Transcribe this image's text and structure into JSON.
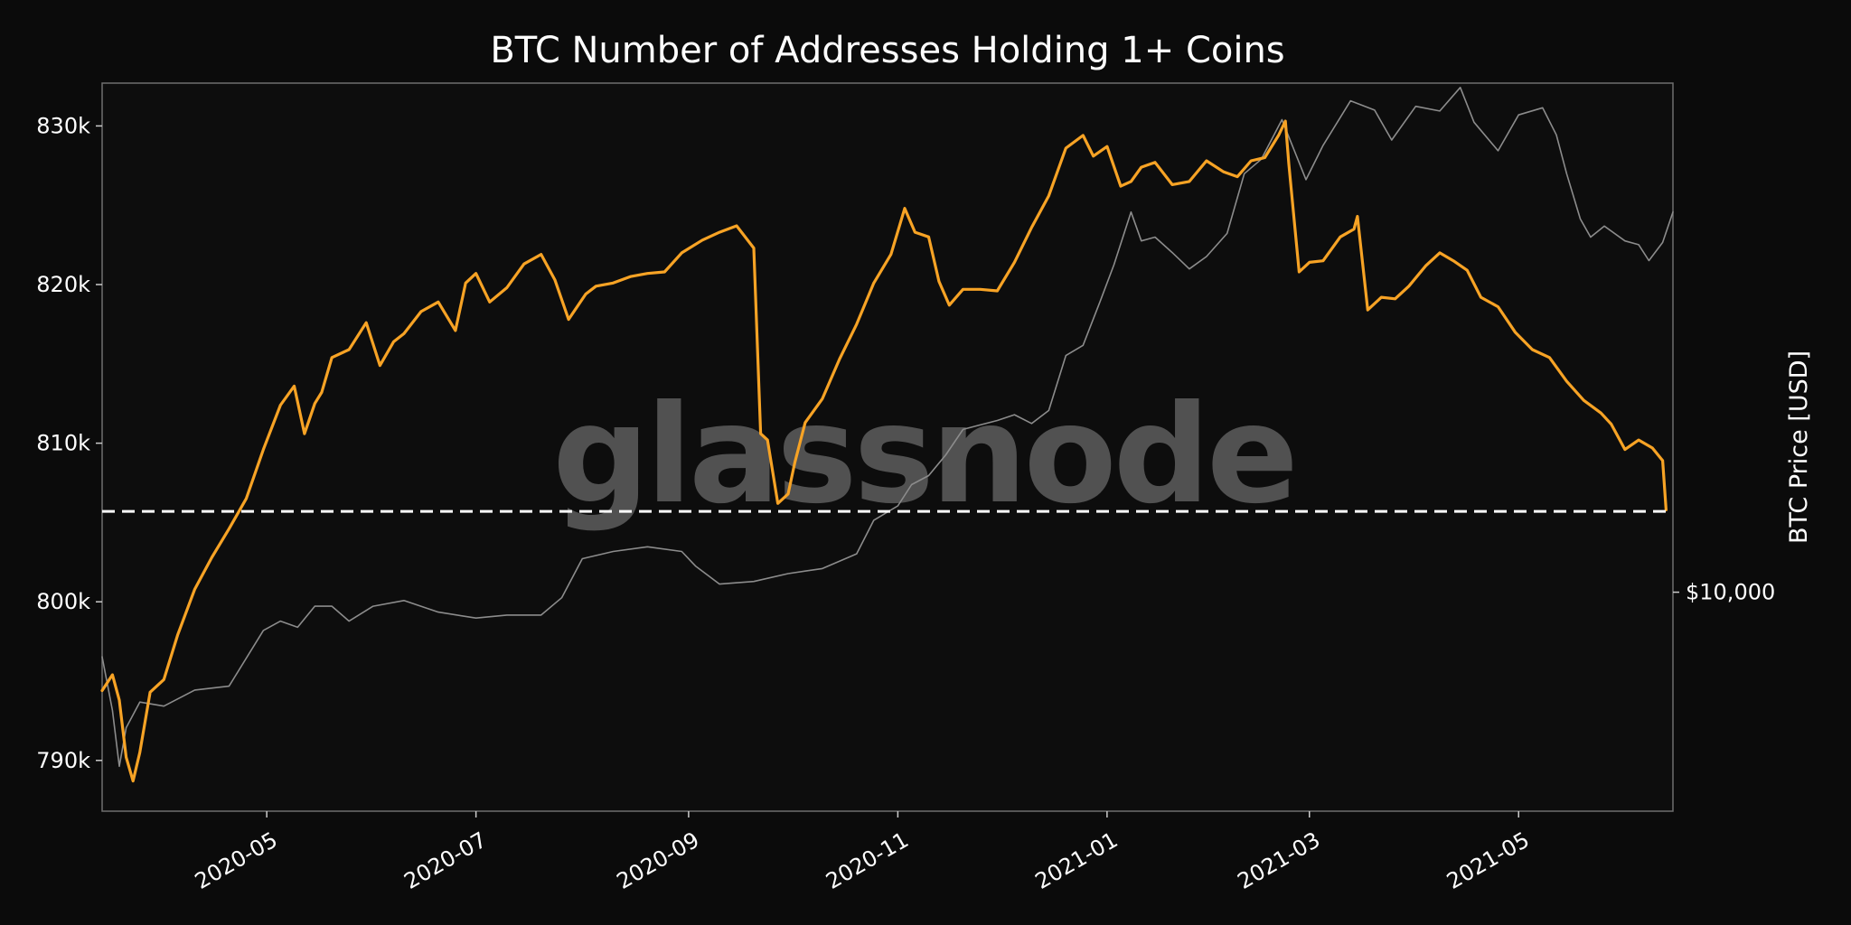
{
  "chart_data": {
    "type": "line",
    "title": "BTC Number of Addresses Holding 1+ Coins",
    "xlabel": "",
    "ylabel": "",
    "y2label": "BTC Price [USD]",
    "watermark": "glassnode",
    "xlim": [
      "2020-03-14",
      "2021-06-15"
    ],
    "ylim": [
      786800,
      832700
    ],
    "y2_log": true,
    "y2lim": [
      4500,
      64000
    ],
    "x_ticks": [
      {
        "date": "2020-05-01",
        "label": "2020-05"
      },
      {
        "date": "2020-07-01",
        "label": "2020-07"
      },
      {
        "date": "2020-09-01",
        "label": "2020-09"
      },
      {
        "date": "2020-11-01",
        "label": "2020-11"
      },
      {
        "date": "2021-01-01",
        "label": "2021-01"
      },
      {
        "date": "2021-03-01",
        "label": "2021-03"
      },
      {
        "date": "2021-05-01",
        "label": "2021-05"
      }
    ],
    "y_ticks": [
      {
        "value": 790000,
        "label": "790k"
      },
      {
        "value": 800000,
        "label": "800k"
      },
      {
        "value": 810000,
        "label": "810k"
      },
      {
        "value": 820000,
        "label": "820k"
      },
      {
        "value": 830000,
        "label": "830k"
      }
    ],
    "y2_ticks": [
      {
        "value": 10000,
        "label": "$10,000"
      }
    ],
    "hline": {
      "value": 805700,
      "style": "dashed",
      "color": "#ffffff"
    },
    "grid": false,
    "legend": "none",
    "series": [
      {
        "color": "#f7a325",
        "axis": "left",
        "x": [
          "2020-03-14",
          "2020-03-17",
          "2020-03-19",
          "2020-03-21",
          "2020-03-23",
          "2020-03-25",
          "2020-03-28",
          "2020-04-01",
          "2020-04-05",
          "2020-04-10",
          "2020-04-15",
          "2020-04-20",
          "2020-04-25",
          "2020-04-30",
          "2020-05-05",
          "2020-05-09",
          "2020-05-12",
          "2020-05-15",
          "2020-05-17",
          "2020-05-20",
          "2020-05-25",
          "2020-05-30",
          "2020-06-03",
          "2020-06-07",
          "2020-06-10",
          "2020-06-15",
          "2020-06-20",
          "2020-06-25",
          "2020-06-28",
          "2020-07-01",
          "2020-07-05",
          "2020-07-10",
          "2020-07-15",
          "2020-07-20",
          "2020-07-24",
          "2020-07-28",
          "2020-08-02",
          "2020-08-05",
          "2020-08-10",
          "2020-08-15",
          "2020-08-20",
          "2020-08-25",
          "2020-08-30",
          "2020-09-05",
          "2020-09-10",
          "2020-09-15",
          "2020-09-20",
          "2020-09-22",
          "2020-09-24",
          "2020-09-27",
          "2020-09-30",
          "2020-10-02",
          "2020-10-05",
          "2020-10-10",
          "2020-10-15",
          "2020-10-20",
          "2020-10-25",
          "2020-10-30",
          "2020-11-03",
          "2020-11-06",
          "2020-11-10",
          "2020-11-13",
          "2020-11-16",
          "2020-11-20",
          "2020-11-25",
          "2020-11-30",
          "2020-12-05",
          "2020-12-10",
          "2020-12-15",
          "2020-12-20",
          "2020-12-25",
          "2020-12-28",
          "2021-01-01",
          "2021-01-05",
          "2021-01-08",
          "2021-01-11",
          "2021-01-15",
          "2021-01-20",
          "2021-01-25",
          "2021-01-30",
          "2021-02-04",
          "2021-02-08",
          "2021-02-12",
          "2021-02-16",
          "2021-02-20",
          "2021-02-22",
          "2021-02-23",
          "2021-02-26",
          "2021-03-01",
          "2021-03-05",
          "2021-03-10",
          "2021-03-14",
          "2021-03-15",
          "2021-03-18",
          "2021-03-22",
          "2021-03-26",
          "2021-03-30",
          "2021-04-04",
          "2021-04-08",
          "2021-04-12",
          "2021-04-16",
          "2021-04-20",
          "2021-04-25",
          "2021-04-30",
          "2021-05-05",
          "2021-05-10",
          "2021-05-15",
          "2021-05-20",
          "2021-05-25",
          "2021-05-28",
          "2021-06-01",
          "2021-06-05",
          "2021-06-09",
          "2021-06-12",
          "2021-06-13"
        ],
        "values": [
          794400,
          795400,
          793800,
          790200,
          788700,
          790500,
          794300,
          795100,
          797900,
          800800,
          802800,
          804600,
          806500,
          809600,
          812400,
          813600,
          810600,
          812500,
          813200,
          815400,
          815900,
          817600,
          814900,
          816400,
          816900,
          818300,
          818900,
          817100,
          820100,
          820700,
          818900,
          819800,
          821300,
          821900,
          820300,
          817800,
          819400,
          819900,
          820100,
          820500,
          820700,
          820800,
          822000,
          822800,
          823300,
          823700,
          822300,
          810600,
          810200,
          806200,
          806800,
          808800,
          811300,
          812800,
          815300,
          817500,
          820100,
          821900,
          824800,
          823300,
          823000,
          820200,
          818700,
          819700,
          819700,
          819600,
          821400,
          823600,
          825600,
          828600,
          829400,
          828100,
          828700,
          826200,
          826500,
          827400,
          827700,
          826300,
          826500,
          827800,
          827100,
          826800,
          827800,
          828000,
          829400,
          830300,
          827600,
          820800,
          821400,
          821500,
          823000,
          823500,
          824300,
          818400,
          819200,
          819100,
          819900,
          821200,
          822000,
          821500,
          820900,
          819200,
          818600,
          817000,
          815900,
          815400,
          813900,
          812700,
          811900,
          811200,
          809600,
          810200,
          809700,
          808900,
          805800
        ]
      },
      {
        "color": "#8c8c8c",
        "axis": "right",
        "x": [
          "2020-03-14",
          "2020-03-17",
          "2020-03-19",
          "2020-03-21",
          "2020-03-25",
          "2020-04-01",
          "2020-04-10",
          "2020-04-20",
          "2020-04-30",
          "2020-05-05",
          "2020-05-10",
          "2020-05-15",
          "2020-05-20",
          "2020-05-25",
          "2020-06-01",
          "2020-06-10",
          "2020-06-20",
          "2020-07-01",
          "2020-07-10",
          "2020-07-20",
          "2020-07-26",
          "2020-08-01",
          "2020-08-10",
          "2020-08-20",
          "2020-08-30",
          "2020-09-03",
          "2020-09-10",
          "2020-09-20",
          "2020-09-30",
          "2020-10-10",
          "2020-10-20",
          "2020-10-25",
          "2020-11-01",
          "2020-11-05",
          "2020-11-10",
          "2020-11-15",
          "2020-11-20",
          "2020-11-25",
          "2020-11-30",
          "2020-12-05",
          "2020-12-10",
          "2020-12-15",
          "2020-12-20",
          "2020-12-25",
          "2020-12-30",
          "2021-01-03",
          "2021-01-08",
          "2021-01-11",
          "2021-01-15",
          "2021-01-20",
          "2021-01-25",
          "2021-01-30",
          "2021-02-05",
          "2021-02-10",
          "2021-02-15",
          "2021-02-21",
          "2021-02-28",
          "2021-03-05",
          "2021-03-13",
          "2021-03-20",
          "2021-03-25",
          "2021-04-01",
          "2021-04-08",
          "2021-04-14",
          "2021-04-18",
          "2021-04-25",
          "2021-05-01",
          "2021-05-08",
          "2021-05-12",
          "2021-05-15",
          "2021-05-19",
          "2021-05-22",
          "2021-05-26",
          "2021-06-01",
          "2021-06-05",
          "2021-06-08",
          "2021-06-12",
          "2021-06-15"
        ],
        "values": [
          7900,
          6500,
          5300,
          6100,
          6700,
          6600,
          7000,
          7100,
          8700,
          9000,
          8800,
          9500,
          9500,
          9000,
          9500,
          9700,
          9300,
          9100,
          9200,
          9200,
          9800,
          11300,
          11600,
          11800,
          11600,
          11000,
          10300,
          10400,
          10700,
          10900,
          11500,
          13000,
          13700,
          14800,
          15300,
          16500,
          18100,
          18400,
          18700,
          19100,
          18500,
          19400,
          23700,
          24600,
          28900,
          33000,
          40000,
          36000,
          36500,
          34500,
          32500,
          34000,
          37000,
          46000,
          48500,
          56000,
          45000,
          51000,
          60000,
          58000,
          52000,
          58800,
          57800,
          63000,
          55500,
          50000,
          57000,
          58500,
          53000,
          46000,
          39000,
          36500,
          38000,
          36000,
          35500,
          33500,
          35800,
          40000
        ]
      }
    ]
  }
}
